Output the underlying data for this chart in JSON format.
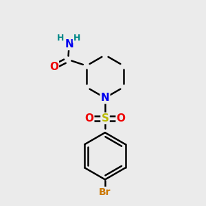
{
  "background_color": "#ebebeb",
  "atom_colors": {
    "N": "#0000ee",
    "O": "#ee0000",
    "S": "#bbbb00",
    "Br": "#cc7700",
    "C": "#000000",
    "H": "#008888"
  },
  "bond_color": "#000000",
  "bond_width": 1.8,
  "figsize": [
    3.0,
    3.0
  ],
  "dpi": 100,
  "font_size_atom": 11,
  "font_size_br": 10,
  "font_size_h": 9
}
